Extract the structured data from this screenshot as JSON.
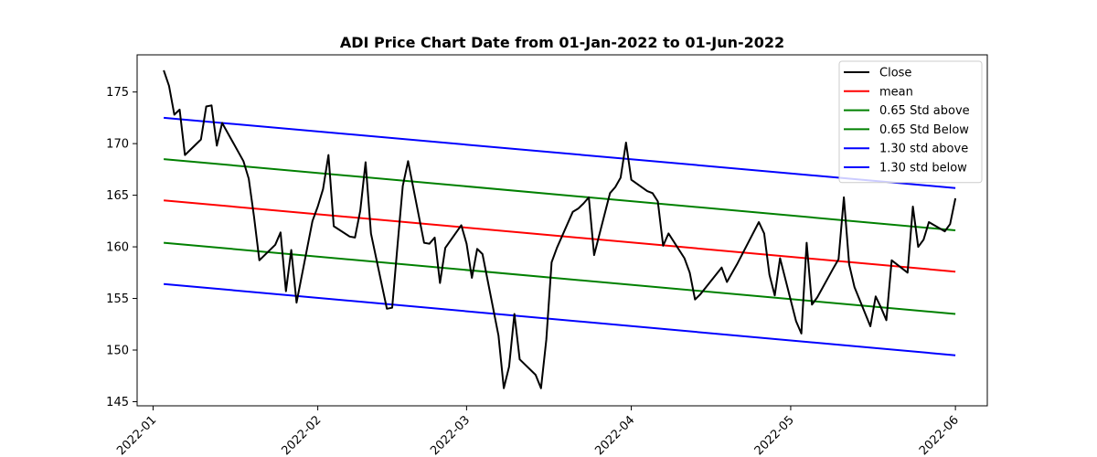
{
  "chart_data": {
    "type": "line",
    "title": "ADI Price Chart Date from 01-Jan-2022 to 01-Jun-2022",
    "xlabel": "",
    "ylabel": "",
    "xlim": [
      "2021-12-29",
      "2022-06-07"
    ],
    "ylim": [
      144.6,
      178.6
    ],
    "x_ticks": [
      "2022-01",
      "2022-02",
      "2022-03",
      "2022-04",
      "2022-05",
      "2022-06"
    ],
    "y_ticks": [
      145,
      150,
      155,
      160,
      165,
      170,
      175
    ],
    "grid": false,
    "legend_position": "top-right",
    "series": [
      {
        "name": "Close",
        "color": "#000000",
        "points": [
          [
            "2022-01-03",
            177.1
          ],
          [
            "2022-01-04",
            175.6
          ],
          [
            "2022-01-05",
            172.8
          ],
          [
            "2022-01-06",
            173.3
          ],
          [
            "2022-01-07",
            168.9
          ],
          [
            "2022-01-10",
            170.4
          ],
          [
            "2022-01-11",
            173.6
          ],
          [
            "2022-01-12",
            173.7
          ],
          [
            "2022-01-13",
            169.8
          ],
          [
            "2022-01-14",
            172.0
          ],
          [
            "2022-01-18",
            168.3
          ],
          [
            "2022-01-19",
            166.6
          ],
          [
            "2022-01-20",
            162.9
          ],
          [
            "2022-01-21",
            158.7
          ],
          [
            "2022-01-24",
            160.2
          ],
          [
            "2022-01-25",
            161.4
          ],
          [
            "2022-01-26",
            155.7
          ],
          [
            "2022-01-27",
            159.7
          ],
          [
            "2022-01-28",
            154.6
          ],
          [
            "2022-01-31",
            162.5
          ],
          [
            "2022-02-01",
            163.9
          ],
          [
            "2022-02-02",
            165.6
          ],
          [
            "2022-02-03",
            168.9
          ],
          [
            "2022-02-04",
            162.0
          ],
          [
            "2022-02-07",
            161.0
          ],
          [
            "2022-02-08",
            160.9
          ],
          [
            "2022-02-09",
            163.5
          ],
          [
            "2022-02-10",
            168.2
          ],
          [
            "2022-02-11",
            161.3
          ],
          [
            "2022-02-14",
            154.0
          ],
          [
            "2022-02-15",
            154.1
          ],
          [
            "2022-02-16",
            160.1
          ],
          [
            "2022-02-17",
            165.9
          ],
          [
            "2022-02-18",
            168.3
          ],
          [
            "2022-02-21",
            160.4
          ],
          [
            "2022-02-22",
            160.3
          ],
          [
            "2022-02-23",
            160.9
          ],
          [
            "2022-02-24",
            156.5
          ],
          [
            "2022-02-25",
            159.9
          ],
          [
            "2022-02-28",
            162.1
          ],
          [
            "2022-03-01",
            160.3
          ],
          [
            "2022-03-02",
            157.0
          ],
          [
            "2022-03-03",
            159.8
          ],
          [
            "2022-03-04",
            159.3
          ],
          [
            "2022-03-07",
            151.4
          ],
          [
            "2022-03-08",
            146.3
          ],
          [
            "2022-03-09",
            148.4
          ],
          [
            "2022-03-10",
            153.5
          ],
          [
            "2022-03-11",
            149.1
          ],
          [
            "2022-03-14",
            147.6
          ],
          [
            "2022-03-15",
            146.3
          ],
          [
            "2022-03-16",
            151.0
          ],
          [
            "2022-03-17",
            158.5
          ],
          [
            "2022-03-18",
            159.9
          ],
          [
            "2022-03-21",
            163.4
          ],
          [
            "2022-03-22",
            163.7
          ],
          [
            "2022-03-23",
            164.2
          ],
          [
            "2022-03-24",
            164.8
          ],
          [
            "2022-03-25",
            159.2
          ],
          [
            "2022-03-28",
            165.2
          ],
          [
            "2022-03-29",
            165.8
          ],
          [
            "2022-03-30",
            166.7
          ],
          [
            "2022-03-31",
            170.1
          ],
          [
            "2022-04-01",
            166.5
          ],
          [
            "2022-04-04",
            165.4
          ],
          [
            "2022-04-05",
            165.2
          ],
          [
            "2022-04-06",
            164.4
          ],
          [
            "2022-04-07",
            160.1
          ],
          [
            "2022-04-08",
            161.3
          ],
          [
            "2022-04-11",
            158.9
          ],
          [
            "2022-04-12",
            157.5
          ],
          [
            "2022-04-13",
            154.9
          ],
          [
            "2022-04-14",
            155.4
          ],
          [
            "2022-04-18",
            158.0
          ],
          [
            "2022-04-19",
            156.6
          ],
          [
            "2022-04-20",
            157.5
          ],
          [
            "2022-04-21",
            158.4
          ],
          [
            "2022-04-22",
            159.4
          ],
          [
            "2022-04-25",
            162.4
          ],
          [
            "2022-04-26",
            161.3
          ],
          [
            "2022-04-27",
            157.3
          ],
          [
            "2022-04-28",
            155.3
          ],
          [
            "2022-04-29",
            158.9
          ],
          [
            "2022-05-02",
            152.8
          ],
          [
            "2022-05-03",
            151.6
          ],
          [
            "2022-05-04",
            160.4
          ],
          [
            "2022-05-05",
            154.4
          ],
          [
            "2022-05-06",
            155.1
          ],
          [
            "2022-05-09",
            157.9
          ],
          [
            "2022-05-10",
            158.8
          ],
          [
            "2022-05-11",
            164.8
          ],
          [
            "2022-05-12",
            158.3
          ],
          [
            "2022-05-13",
            156.1
          ],
          [
            "2022-05-16",
            152.3
          ],
          [
            "2022-05-17",
            155.2
          ],
          [
            "2022-05-18",
            154.1
          ],
          [
            "2022-05-19",
            152.9
          ],
          [
            "2022-05-20",
            158.7
          ],
          [
            "2022-05-23",
            157.5
          ],
          [
            "2022-05-24",
            163.9
          ],
          [
            "2022-05-25",
            160.0
          ],
          [
            "2022-05-26",
            160.7
          ],
          [
            "2022-05-27",
            162.4
          ],
          [
            "2022-05-30",
            161.5
          ],
          [
            "2022-05-31",
            162.2
          ],
          [
            "2022-06-01",
            164.7
          ]
        ]
      },
      {
        "name": "mean",
        "color": "#ff0000",
        "line": [
          [
            "2022-01-03",
            164.5
          ],
          [
            "2022-06-01",
            157.6
          ]
        ]
      },
      {
        "name": "0.65 Std above",
        "color": "#008000",
        "line": [
          [
            "2022-01-03",
            168.5
          ],
          [
            "2022-06-01",
            161.6
          ]
        ]
      },
      {
        "name": "0.65 Std Below",
        "color": "#008000",
        "line": [
          [
            "2022-01-03",
            160.4
          ],
          [
            "2022-06-01",
            153.5
          ]
        ]
      },
      {
        "name": "1.30 std above",
        "color": "#0000ff",
        "line": [
          [
            "2022-01-03",
            172.5
          ],
          [
            "2022-06-01",
            165.7
          ]
        ]
      },
      {
        "name": "1.30 std below",
        "color": "#0000ff",
        "line": [
          [
            "2022-01-03",
            156.4
          ],
          [
            "2022-06-01",
            149.5
          ]
        ]
      }
    ]
  }
}
